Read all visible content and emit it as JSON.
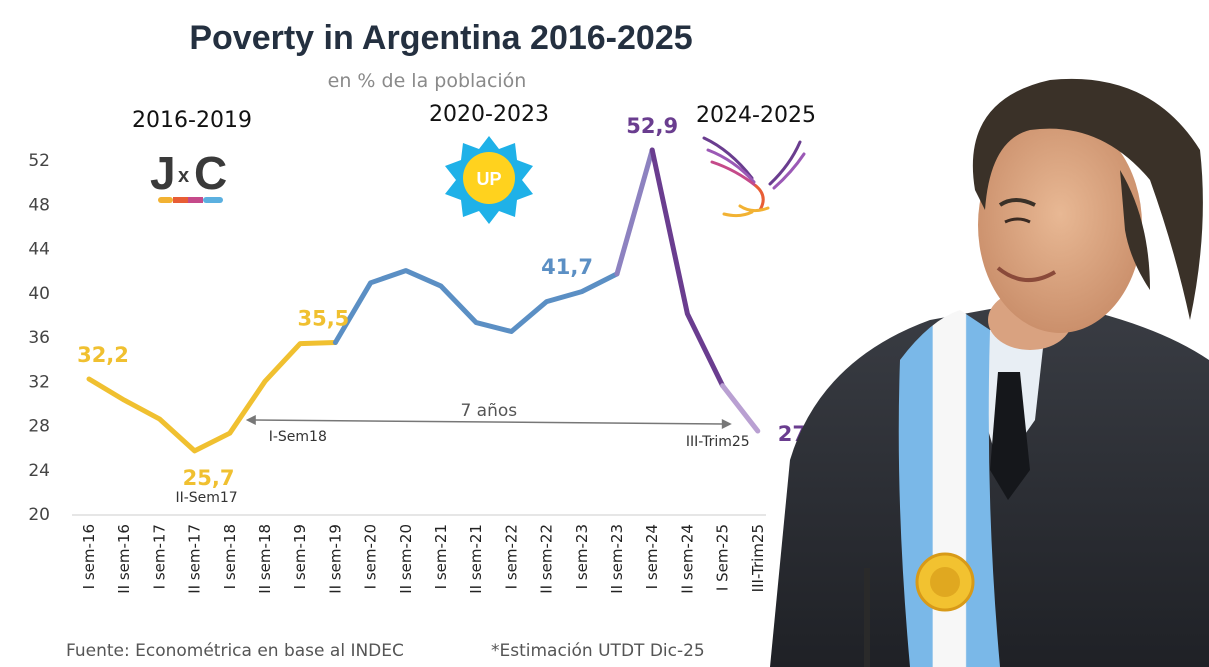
{
  "chart_data": {
    "type": "line",
    "title": "Poverty in Argentina 2016-2025",
    "subtitle": "en % de la población",
    "periods": [
      "2016-2019",
      "2020-2023",
      "2024-2025"
    ],
    "categories": [
      "I sem-16",
      "II sem-16",
      "I sem-17",
      "II sem-17",
      "I sem-18",
      "II sem-18",
      "I sem-19",
      "II sem-19",
      "I sem-20",
      "II sem-20",
      "I sem-21",
      "II sem-21",
      "I sem-22",
      "II sem-22",
      "I sem-23",
      "II sem-23",
      "I sem-24",
      "II sem-24",
      "I Sem-25",
      "III-Trim25"
    ],
    "values": [
      32.2,
      30.3,
      28.6,
      25.7,
      27.3,
      32.0,
      35.4,
      35.5,
      40.9,
      42.0,
      40.6,
      37.3,
      36.5,
      39.2,
      40.1,
      41.7,
      52.9,
      38.1,
      31.6,
      27.5
    ],
    "series": [
      {
        "period": "2016-2019",
        "color": "#f0c030",
        "from": 0,
        "to": 7
      },
      {
        "period": "2020-2023",
        "color": "#5b8fc4",
        "from": 7,
        "to": 15
      },
      {
        "period": "2024-2025",
        "color": "#6a3d8f",
        "from": 15,
        "to": 19
      }
    ],
    "ylim": [
      20,
      52
    ],
    "yticks": [
      52,
      48,
      44,
      40,
      36,
      32,
      28,
      24,
      20
    ],
    "data_labels": [
      {
        "index": 0,
        "text": "32,2",
        "color": "#f0c030"
      },
      {
        "index": 3,
        "text": "25,7",
        "color": "#f0c030"
      },
      {
        "index": 7,
        "text": "35,5",
        "color": "#f0c030"
      },
      {
        "index": 15,
        "text": "41,7",
        "color": "#5b8fc4"
      },
      {
        "index": 16,
        "text": "52,9",
        "color": "#6a3d8f"
      },
      {
        "index": 19,
        "text": "27,5",
        "color": "#6a3d8f"
      }
    ],
    "sub_labels": [
      {
        "index": 3,
        "text": "II-Sem17"
      },
      {
        "index": 4,
        "text": "I-Sem18"
      },
      {
        "index": 19,
        "text": "III-Trim25"
      }
    ],
    "annotation": {
      "text": "7 años",
      "from": 4,
      "to": 19
    },
    "grid": false,
    "legend": "none"
  },
  "logos": {
    "jxc": {
      "text_left": "J",
      "text_mid": "x",
      "text_right": "C"
    },
    "up": {
      "text": "UP"
    }
  },
  "footer": {
    "source": "Fuente: Econométrica en base al INDEC",
    "note": "*Estimación UTDT Dic-25"
  }
}
